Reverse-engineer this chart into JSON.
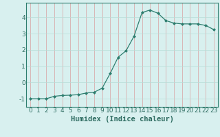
{
  "x": [
    0,
    1,
    2,
    3,
    4,
    5,
    6,
    7,
    8,
    9,
    10,
    11,
    12,
    13,
    14,
    15,
    16,
    17,
    18,
    19,
    20,
    21,
    22,
    23
  ],
  "y": [
    -1.0,
    -1.0,
    -1.0,
    -0.85,
    -0.8,
    -0.78,
    -0.75,
    -0.65,
    -0.6,
    -0.35,
    0.55,
    1.55,
    1.95,
    2.85,
    4.3,
    4.45,
    4.25,
    3.8,
    3.65,
    3.6,
    3.6,
    3.6,
    3.5,
    3.25
  ],
  "line_color": "#2d7d6e",
  "marker": "D",
  "marker_size": 2.0,
  "bg_color": "#d8f0ef",
  "grid_color": "#b8dcd8",
  "grid_color_minor": "#c8e8e5",
  "xlabel": "Humidex (Indice chaleur)",
  "xlabel_fontsize": 7.5,
  "xlabel_fontweight": "bold",
  "tick_fontsize": 6.5,
  "ylim": [
    -1.5,
    4.9
  ],
  "xlim": [
    -0.5,
    23.5
  ],
  "yticks": [
    -1,
    0,
    1,
    2,
    3,
    4
  ],
  "xticks": [
    0,
    1,
    2,
    3,
    4,
    5,
    6,
    7,
    8,
    9,
    10,
    11,
    12,
    13,
    14,
    15,
    16,
    17,
    18,
    19,
    20,
    21,
    22,
    23
  ]
}
